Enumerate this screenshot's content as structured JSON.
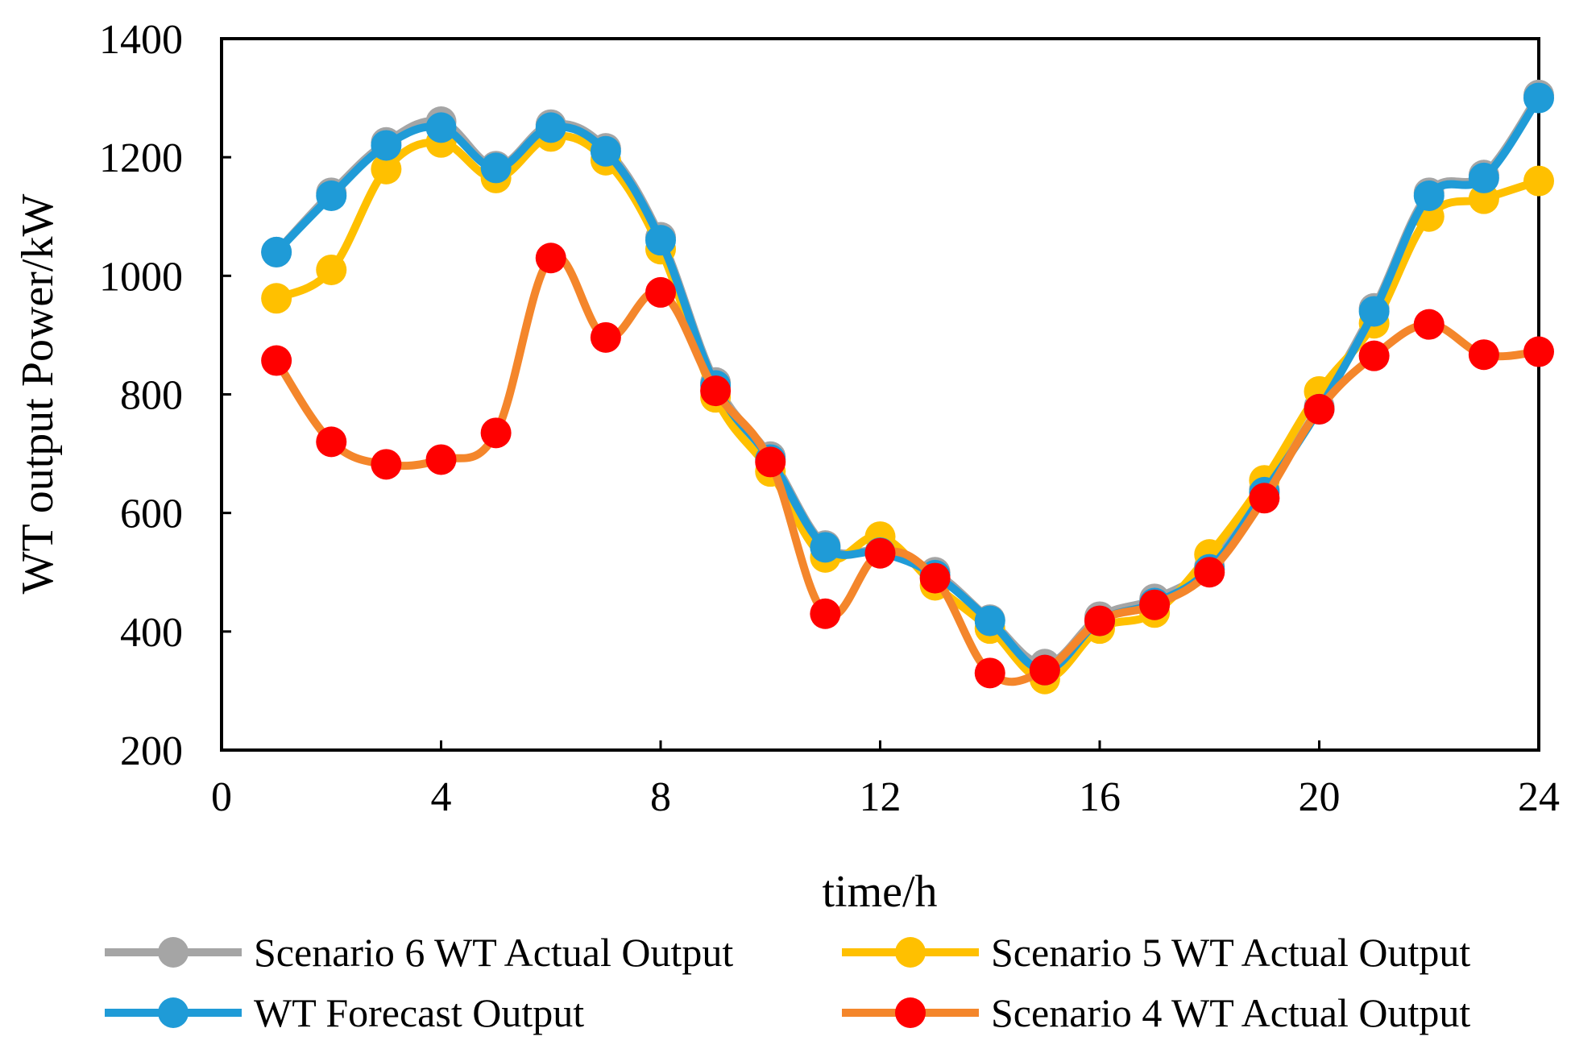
{
  "chart_data": {
    "type": "line",
    "xlabel": "time/h",
    "ylabel": "WT output Power/kW",
    "xlim": [
      0,
      24
    ],
    "ylim": [
      200,
      1400
    ],
    "xticks": [
      0,
      4,
      8,
      12,
      16,
      20,
      24
    ],
    "yticks": [
      200,
      400,
      600,
      800,
      1000,
      1200,
      1400
    ],
    "grid": false,
    "legend_position": "bottom",
    "x": [
      1,
      2,
      3,
      4,
      5,
      6,
      7,
      8,
      9,
      10,
      11,
      12,
      13,
      14,
      15,
      16,
      17,
      18,
      19,
      20,
      21,
      22,
      23,
      24
    ],
    "series": [
      {
        "name": "Scenario 6 WT Actual Output",
        "color": "#A5A5A5",
        "line_color": "#A5A5A5",
        "values": [
          1040,
          1140,
          1225,
          1260,
          1185,
          1255,
          1215,
          1065,
          820,
          695,
          545,
          535,
          500,
          420,
          345,
          425,
          455,
          510,
          640,
          780,
          945,
          1140,
          1170,
          1305
        ]
      },
      {
        "name": "Scenario 5 WT Actual Output",
        "color": "#FFC000",
        "line_color": "#FFC000",
        "values": [
          962,
          1010,
          1180,
          1225,
          1165,
          1235,
          1195,
          1045,
          795,
          670,
          525,
          560,
          478,
          405,
          320,
          405,
          432,
          530,
          655,
          805,
          920,
          1100,
          1130,
          1160
        ]
      },
      {
        "name": "WT Forecast Output",
        "color": "#1F9BD7",
        "line_color": "#1F9BD7",
        "values": [
          1040,
          1135,
          1220,
          1250,
          1182,
          1250,
          1210,
          1060,
          815,
          690,
          542,
          533,
          495,
          418,
          335,
          418,
          448,
          505,
          635,
          775,
          940,
          1135,
          1165,
          1300
        ]
      },
      {
        "name": "Scenario 4 WT Actual Output",
        "color": "#FF0000",
        "line_color": "#F4862B",
        "values": [
          857,
          720,
          682,
          690,
          735,
          1030,
          896,
          972,
          806,
          686,
          430,
          532,
          490,
          330,
          335,
          418,
          445,
          500,
          625,
          775,
          865,
          918,
          867,
          872
        ]
      }
    ]
  }
}
